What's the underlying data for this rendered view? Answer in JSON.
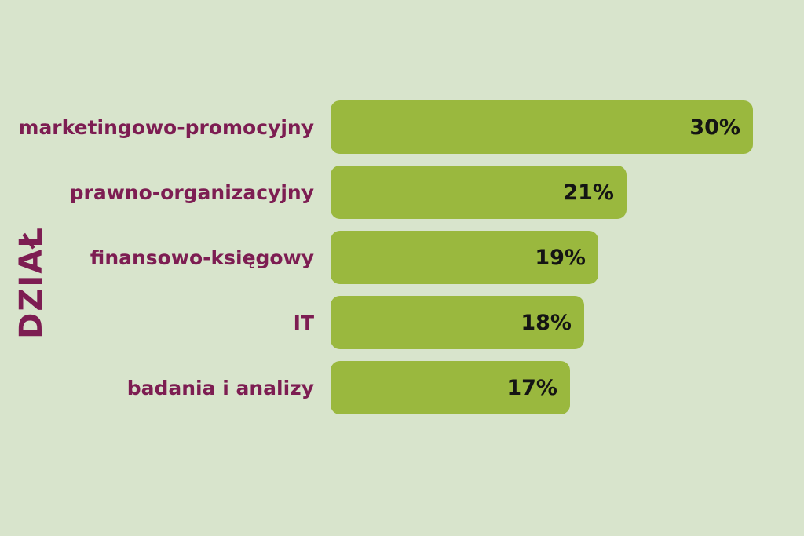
{
  "chart_data": {
    "type": "bar",
    "orientation": "horizontal",
    "title": "",
    "ylabel": "DZIAŁ",
    "xlabel": "",
    "categories": [
      "marketingowo-promocyjny",
      "prawno-organizacyjny",
      "finansowo-księgowy",
      "IT",
      "badania i analizy"
    ],
    "values": [
      30,
      21,
      19,
      18,
      17
    ],
    "value_labels": [
      "30%",
      "21%",
      "19%",
      "18%",
      "17%"
    ],
    "xlim": [
      0,
      30
    ],
    "grid": false,
    "legend": false,
    "colors": {
      "background": "#d8e4cc",
      "bar_fill": "#9ab83e",
      "category_text": "#7d1d52",
      "axis_title_text": "#7d1d52",
      "value_text": "#141414"
    }
  }
}
